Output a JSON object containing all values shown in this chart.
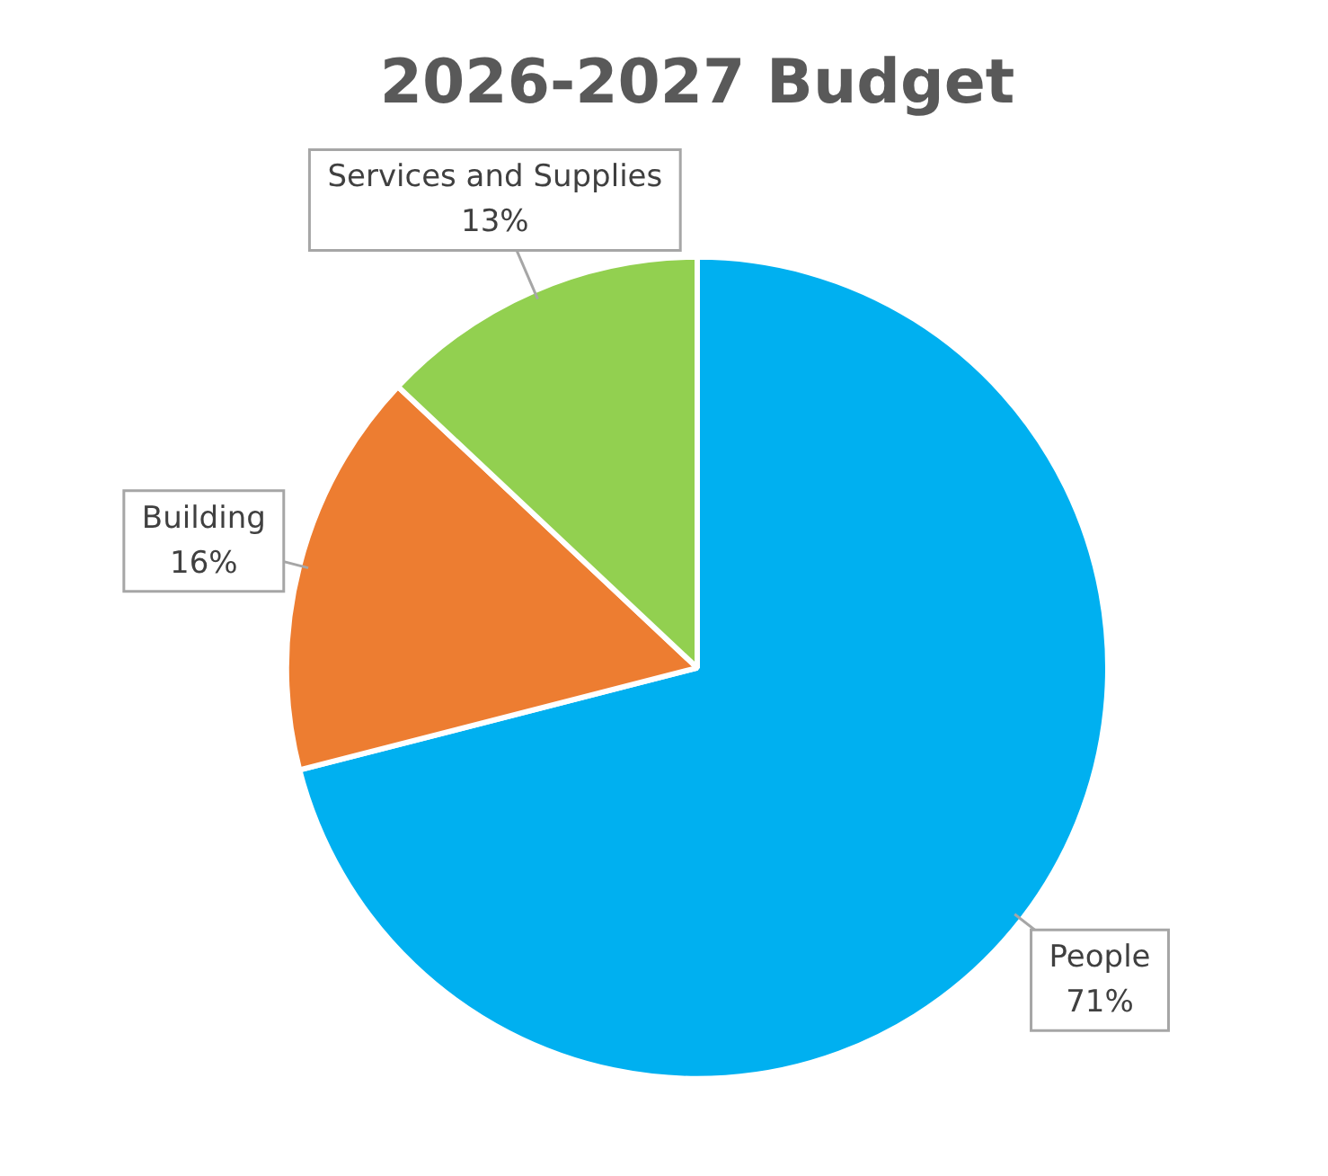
{
  "chart_data": {
    "type": "pie",
    "title": "2026-2027 Budget",
    "categories": [
      "People",
      "Building",
      "Services and Supplies"
    ],
    "values": [
      71,
      16,
      13
    ],
    "colors": [
      "#00b0f0",
      "#ed7d31",
      "#92d050"
    ],
    "value_labels": [
      "71%",
      "16%",
      "13%"
    ],
    "legend": false
  }
}
